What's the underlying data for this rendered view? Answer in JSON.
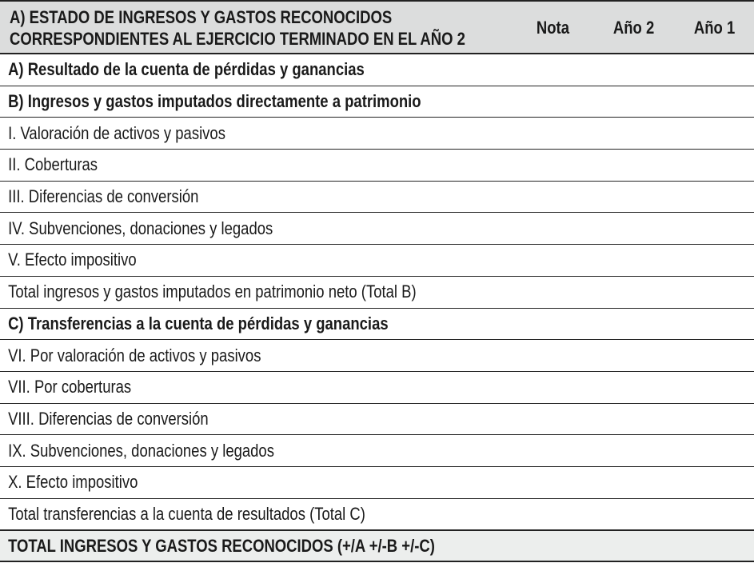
{
  "header": {
    "title_line1": "A) ESTADO DE INGRESOS Y GASTOS RECONOCIDOS",
    "title_line2": "CORRESPONDIENTES AL EJERCICIO TERMINADO EN EL AÑO 2",
    "col_nota": "Nota",
    "col_ano2": "Año 2",
    "col_ano1": "Año 1"
  },
  "rows": [
    {
      "label": "A) Resultado de la cuenta de pérdidas y ganancias",
      "bold": true
    },
    {
      "label": "B) Ingresos y gastos imputados directamente a patrimonio",
      "bold": true
    },
    {
      "label": "I. Valoración de activos y pasivos"
    },
    {
      "label": "II. Coberturas"
    },
    {
      "label": "III. Diferencias de conversión"
    },
    {
      "label": "IV. Subvenciones, donaciones y legados"
    },
    {
      "label": "V. Efecto impositivo"
    },
    {
      "label": "Total ingresos y gastos imputados en patrimonio neto (Total B)"
    },
    {
      "label": "C) Transferencias a la cuenta de pérdidas y ganancias",
      "bold": true
    },
    {
      "label": "VI. Por valoración de activos y pasivos"
    },
    {
      "label": "VII. Por coberturas"
    },
    {
      "label": "VIII. Diferencias de conversión"
    },
    {
      "label": "IX. Subvenciones, donaciones y legados"
    },
    {
      "label": "X. Efecto impositivo"
    },
    {
      "label": "Total transferencias a la cuenta de resultados (Total C)"
    }
  ],
  "total": {
    "label": "TOTAL INGRESOS Y GASTOS RECONOCIDOS (+/A +/-B +/-C)"
  },
  "colors": {
    "header_bg": "#dcdddd",
    "total_bg": "#eceeed",
    "rule": "#222222"
  }
}
